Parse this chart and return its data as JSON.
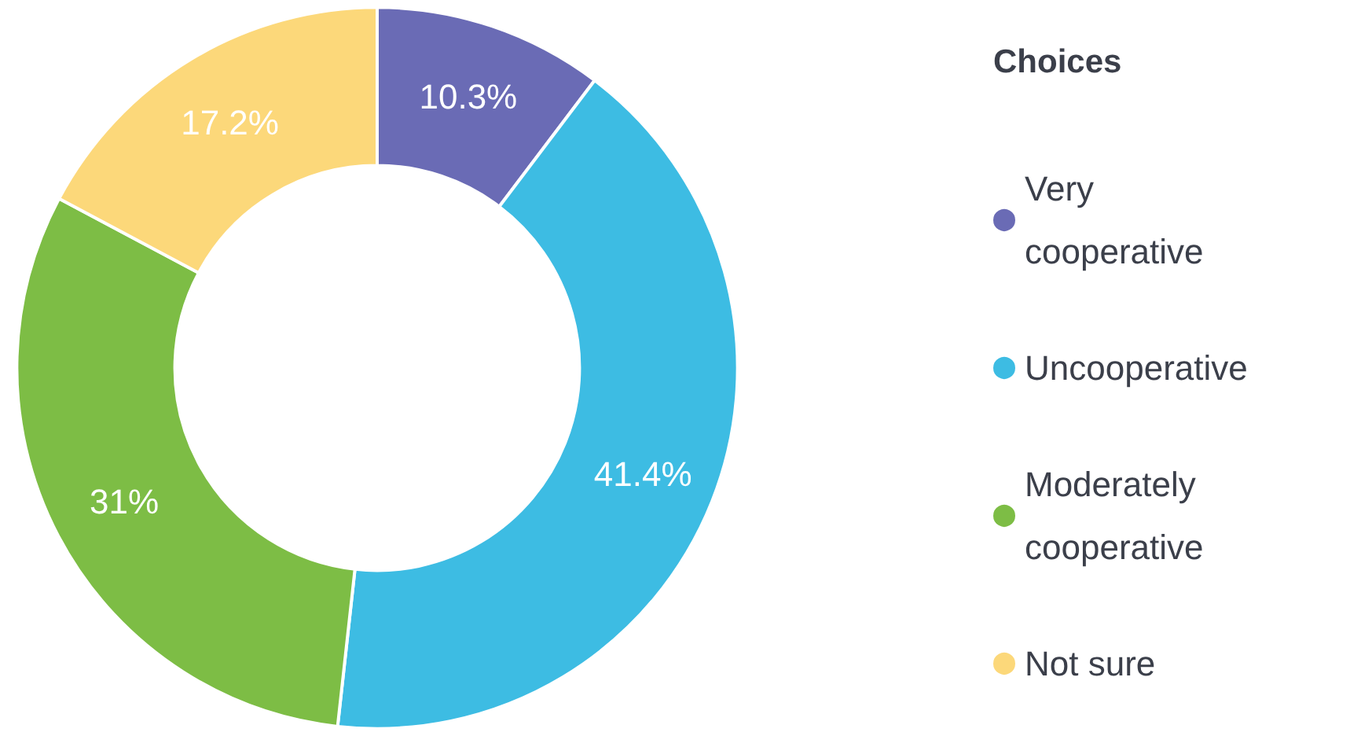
{
  "chart_data": {
    "type": "donut",
    "legend_title": "Choices",
    "categories": [
      "Very cooperative",
      "Uncooperative",
      "Moderately cooperative",
      "Not sure"
    ],
    "values": [
      10.3,
      41.4,
      31,
      17.2
    ],
    "colors": [
      "#6a6bb5",
      "#3dbce3",
      "#7dbd45",
      "#fcd87a"
    ],
    "value_labels": [
      "10.3%",
      "41.4%",
      "31%",
      "17.2%"
    ],
    "legend": "right"
  }
}
